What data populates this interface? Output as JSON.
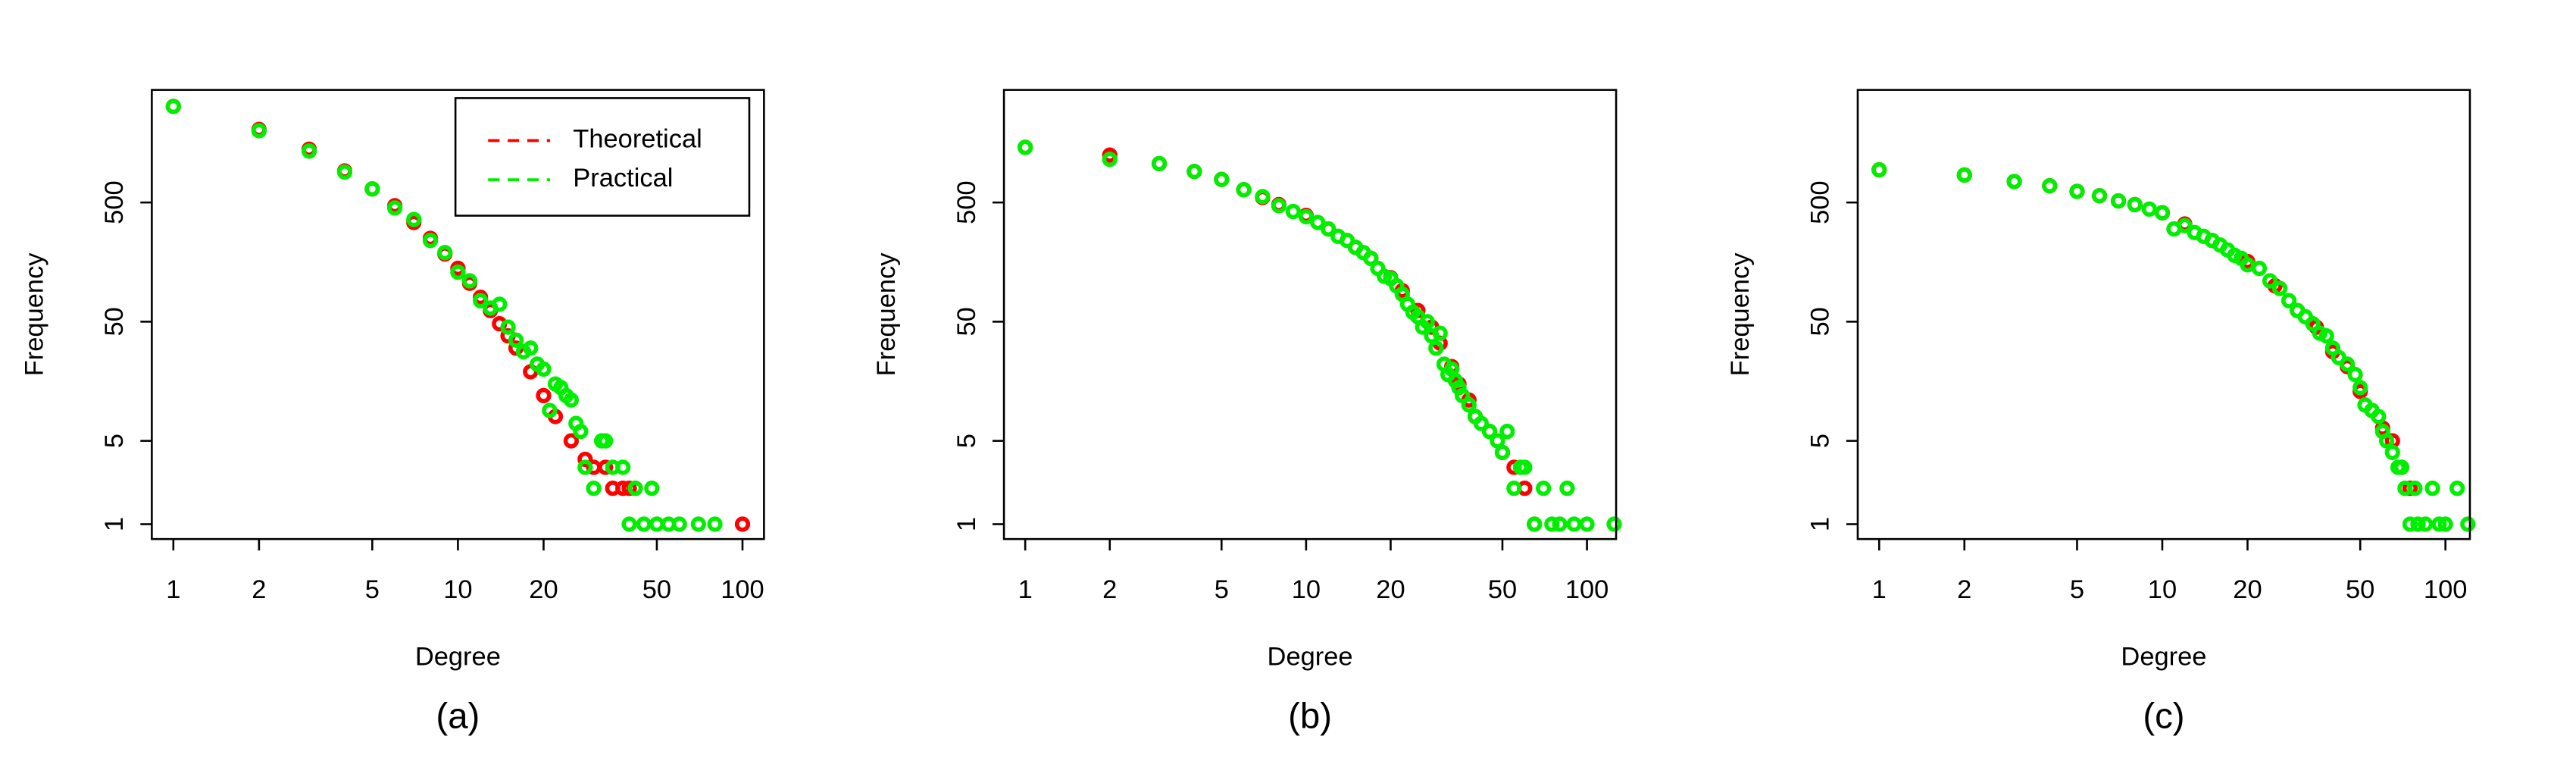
{
  "chart_data": [
    {
      "type": "scatter",
      "caption": "(a)",
      "xlabel": "Degree",
      "ylabel": "Frequency",
      "xscale": "log",
      "yscale": "log",
      "xlim": [
        0.84,
        119
      ],
      "ylim": [
        0.75,
        4400
      ],
      "xticks": [
        1,
        2,
        5,
        10,
        20,
        50,
        100
      ],
      "yticks": [
        1,
        5,
        50,
        500
      ],
      "legend": "topright",
      "series": [
        {
          "name": "Theoretical",
          "color": "#ff0000",
          "x": [
            1,
            2,
            3,
            4,
            5,
            6,
            7,
            8,
            9,
            10,
            11,
            12,
            13,
            14,
            15,
            16,
            18,
            20,
            22,
            25,
            28,
            30,
            33,
            35,
            38,
            40,
            42,
            100
          ],
          "values": [
            3200,
            2050,
            1400,
            920,
            650,
            470,
            340,
            250,
            185,
            140,
            105,
            80,
            62,
            48,
            38,
            30,
            19,
            12,
            8,
            5,
            3.5,
            3,
            3,
            2,
            2,
            2,
            2,
            1
          ]
        },
        {
          "name": "Practical",
          "color": "#00ee00",
          "x": [
            1,
            2,
            3,
            4,
            5,
            6,
            7,
            8,
            9,
            10,
            11,
            12,
            13,
            14,
            15,
            16,
            17,
            18,
            19,
            20,
            21,
            22,
            23,
            24,
            25,
            26,
            27,
            28,
            30,
            32,
            33,
            35,
            38,
            40,
            42,
            45,
            48,
            50,
            55,
            60,
            70,
            80
          ],
          "values": [
            3200,
            2000,
            1350,
            900,
            650,
            450,
            360,
            240,
            190,
            130,
            110,
            75,
            65,
            70,
            45,
            35,
            28,
            30,
            22,
            20,
            9,
            15,
            14,
            12,
            11,
            7,
            6,
            3,
            2,
            5,
            5,
            3,
            3,
            1,
            2,
            1,
            2,
            1,
            1,
            1,
            1,
            1
          ]
        }
      ]
    },
    {
      "type": "scatter",
      "caption": "(b)",
      "xlabel": "Degree",
      "ylabel": "Frequency",
      "xscale": "log",
      "yscale": "log",
      "xlim": [
        0.84,
        127
      ],
      "ylim": [
        0.75,
        4400
      ],
      "xticks": [
        1,
        2,
        5,
        10,
        20,
        50,
        100
      ],
      "yticks": [
        1,
        5,
        50,
        500
      ],
      "series": [
        {
          "color": "#ff0000",
          "x": [
            1,
            2,
            3,
            4,
            5,
            6,
            7,
            8,
            10,
            12,
            15,
            17,
            20,
            22,
            25,
            28,
            30,
            33,
            35,
            38,
            40,
            45,
            50,
            55,
            60,
            65
          ],
          "values": [
            1450,
            1250,
            1060,
            910,
            780,
            640,
            550,
            480,
            390,
            300,
            210,
            170,
            117,
            91,
            62,
            45,
            33,
            21,
            15,
            11,
            8,
            6,
            4,
            3,
            2,
            1
          ]
        },
        {
          "color": "#00ee00",
          "x": [
            1,
            2,
            3,
            4,
            5,
            6,
            7,
            8,
            9,
            10,
            11,
            12,
            13,
            14,
            15,
            16,
            17,
            18,
            19,
            20,
            21,
            22,
            23,
            24,
            25,
            26,
            27,
            28,
            29,
            30,
            31,
            32,
            33,
            34,
            35,
            36,
            38,
            40,
            42,
            45,
            48,
            50,
            52,
            55,
            58,
            60,
            65,
            70,
            75,
            80,
            85,
            90,
            100,
            125
          ],
          "values": [
            1450,
            1150,
            1060,
            910,
            780,
            640,
            560,
            470,
            420,
            380,
            340,
            300,
            260,
            240,
            210,
            190,
            170,
            140,
            120,
            115,
            100,
            85,
            70,
            60,
            55,
            45,
            50,
            38,
            30,
            40,
            22,
            18,
            20,
            16,
            14,
            12,
            10,
            8,
            7,
            6,
            5,
            4,
            6,
            2,
            3,
            3,
            1,
            2,
            1,
            1,
            2,
            1,
            1,
            1
          ]
        }
      ]
    },
    {
      "type": "scatter",
      "caption": "(c)",
      "xlabel": "Degree",
      "ylabel": "Frequency",
      "xscale": "log",
      "yscale": "log",
      "xlim": [
        0.84,
        122
      ],
      "ylim": [
        0.75,
        4400
      ],
      "xticks": [
        1,
        2,
        5,
        10,
        20,
        50,
        100
      ],
      "yticks": [
        1,
        5,
        50,
        500
      ],
      "series": [
        {
          "color": "#ff0000",
          "x": [
            1,
            2,
            3,
            4,
            5,
            6,
            7,
            8,
            10,
            12,
            15,
            20,
            25,
            30,
            35,
            40,
            45,
            50,
            55,
            60,
            65,
            70,
            75
          ],
          "values": [
            940,
            850,
            750,
            690,
            620,
            570,
            515,
            480,
            410,
            330,
            240,
            160,
            100,
            62,
            45,
            28,
            21,
            13,
            9,
            6.4,
            5,
            3,
            2
          ]
        },
        {
          "color": "#00ee00",
          "x": [
            1,
            2,
            3,
            4,
            5,
            6,
            7,
            8,
            9,
            10,
            11,
            12,
            13,
            14,
            15,
            16,
            17,
            18,
            19,
            20,
            22,
            24,
            26,
            28,
            30,
            32,
            34,
            36,
            38,
            40,
            42,
            45,
            48,
            50,
            52,
            55,
            58,
            60,
            62,
            65,
            68,
            70,
            72,
            75,
            78,
            80,
            85,
            90,
            95,
            100,
            110,
            120
          ],
          "values": [
            940,
            850,
            750,
            690,
            620,
            570,
            515,
            480,
            440,
            410,
            300,
            320,
            280,
            260,
            240,
            220,
            200,
            180,
            170,
            150,
            140,
            110,
            95,
            75,
            62,
            55,
            48,
            40,
            38,
            30,
            25,
            22,
            18,
            14,
            10,
            9,
            8,
            6,
            5,
            4,
            3,
            3,
            2,
            1,
            2,
            1,
            1,
            2,
            1,
            1,
            2,
            1
          ]
        }
      ]
    }
  ]
}
